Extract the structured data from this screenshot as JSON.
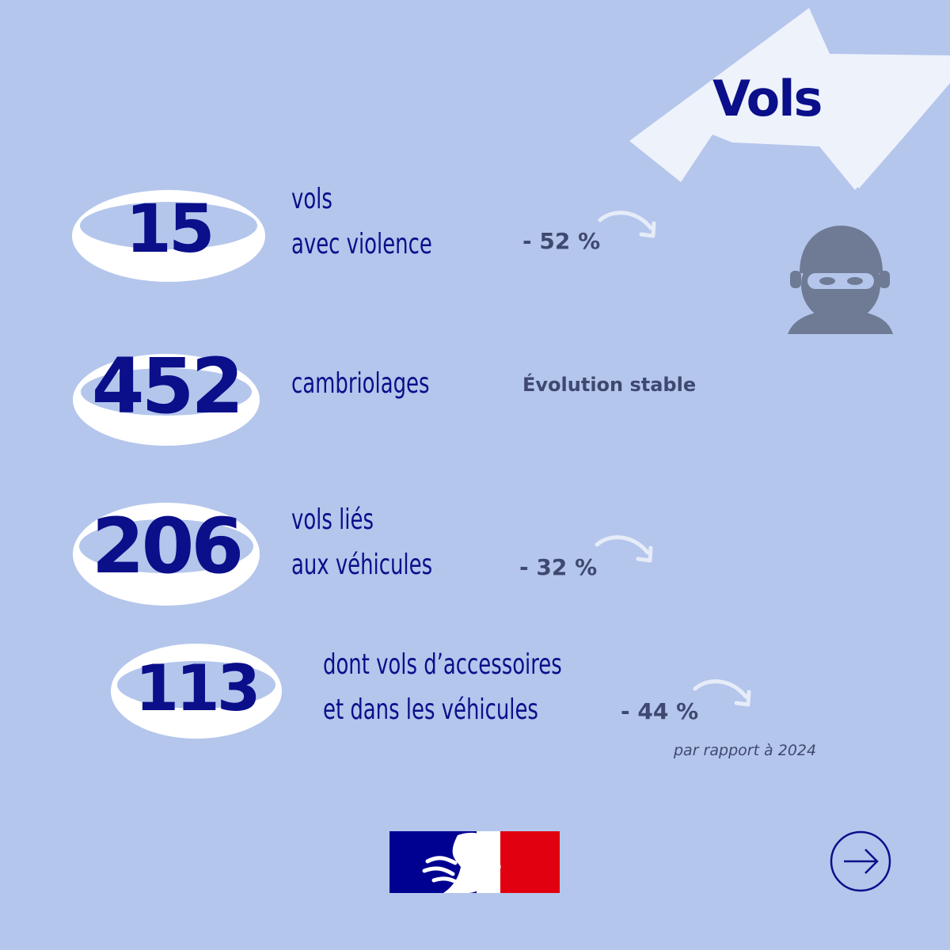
{
  "title": "Vols",
  "stats": [
    {
      "value": "15",
      "label_lines": [
        "vols",
        "avec violence"
      ],
      "evolution": "- 52 %"
    },
    {
      "value": "452",
      "label_lines": [
        "cambriolages"
      ],
      "evolution": "Évolution stable"
    },
    {
      "value": "206",
      "label_lines": [
        "vols liés",
        "aux véhicules"
      ],
      "evolution": "- 32 %"
    },
    {
      "value": "113",
      "label_lines": [
        "dont vols d’accessoires",
        "et dans les véhicules"
      ],
      "evolution": "- 44 %"
    }
  ],
  "comparison_note": "par rapport à 2024",
  "icons": {
    "illustration": "thief-icon",
    "logo": "marianne-logo",
    "next": "next-arrow-icon",
    "trend": "curved-arrow-icon"
  },
  "colors": {
    "background": "#b4c6ec",
    "primary": "#0b0f8a",
    "text_gray": "#3f4870",
    "blue": "#000091",
    "red": "#e1000f"
  }
}
